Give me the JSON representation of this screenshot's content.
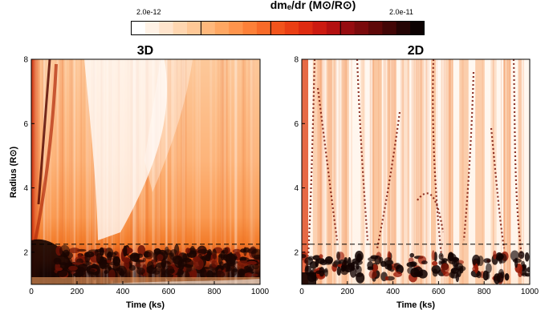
{
  "colorbar": {
    "title": "dmₑ/dr (M⊙/R⊙)",
    "min_label": "2.0e-12",
    "max_label": "2.0e-11",
    "colors": [
      "#ffffff",
      "#fff2e6",
      "#ffe4cc",
      "#ffd6b0",
      "#ffc896",
      "#ffb87c",
      "#ffa762",
      "#ff944c",
      "#fd8038",
      "#f86a28",
      "#f2541c",
      "#ea3f14",
      "#de2b10",
      "#cc1a10",
      "#b31010",
      "#960c10",
      "#7a0a0c",
      "#5e0808",
      "#420606",
      "#240404",
      "#0c0202"
    ]
  },
  "chart_data": [
    {
      "type": "heatmap",
      "title": "3D",
      "xlabel": "Time (ks)",
      "ylabel": "Radius (R⊙)",
      "xlim": [
        0,
        1000
      ],
      "ylim": [
        1,
        8
      ],
      "xticks": [
        0,
        200,
        400,
        600,
        800,
        1000
      ],
      "yticks": [
        2,
        4,
        6,
        8
      ],
      "reference_line": {
        "y": 2.25,
        "style": "dashed"
      }
    },
    {
      "type": "heatmap",
      "title": "2D",
      "xlabel": "Time (ks)",
      "ylabel": "",
      "xlim": [
        0,
        1000
      ],
      "ylim": [
        1,
        8
      ],
      "xticks": [
        0,
        200,
        400,
        600,
        800,
        1000
      ],
      "yticks": [
        2,
        4,
        6,
        8
      ],
      "reference_line": {
        "y": 2.25,
        "style": "dashed"
      }
    }
  ]
}
